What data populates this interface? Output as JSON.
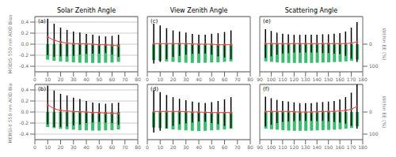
{
  "chart_data": [
    {
      "type": "line",
      "title": "Solar Zenith Angle",
      "ylabel": "MODIS 550 nm AOD Bias",
      "annotations": [
        "(a)"
      ],
      "x": [
        10,
        15,
        20,
        25,
        30,
        35,
        40,
        45,
        50,
        55,
        60,
        65
      ],
      "xlim": [
        0,
        80
      ],
      "xticks": [
        0,
        10,
        20,
        30,
        40,
        50,
        60,
        70,
        80
      ],
      "ylim": [
        -0.5,
        0.5
      ],
      "yticks": [
        -0.4,
        -0.2,
        {
          "value": 0,
          "label": "0.0"
        },
        0.2,
        0.4
      ],
      "y2lim": [
        125,
        -125
      ],
      "grid": true,
      "series": [
        {
          "type": "bar",
          "axis": "y2",
          "color": "#3dbb6e",
          "values": [
            70,
            75,
            78,
            80,
            82,
            84,
            84,
            85,
            85,
            84,
            83,
            80
          ]
        },
        {
          "type": "line",
          "color": "#d94040",
          "marker": "circle",
          "values": [
            0.13,
            0.07,
            0.04,
            0.02,
            0.01,
            0.01,
            0.005,
            0.0,
            -0.01,
            -0.01,
            -0.02,
            -0.03
          ],
          "error": [
            0.33,
            0.3,
            0.26,
            0.24,
            0.22,
            0.2,
            0.18,
            0.17,
            0.16,
            0.15,
            0.17,
            0.2
          ]
        }
      ]
    },
    {
      "type": "line",
      "title": "View Zenith Angle",
      "annotations": [
        "(c)"
      ],
      "tick_labels": "x",
      "x": [
        5,
        10,
        15,
        20,
        25,
        30,
        35,
        40,
        45,
        50,
        55,
        60,
        65
      ],
      "xlim": [
        0,
        80
      ],
      "xticks": [
        0,
        10,
        20,
        30,
        40,
        50,
        60,
        70,
        80
      ],
      "ylim": [
        -0.5,
        0.5
      ],
      "yticks": [
        -0.4,
        -0.2,
        {
          "value": 0,
          "label": "0.0"
        },
        0.2,
        0.4
      ],
      "y2lim": [
        125,
        -125
      ],
      "grid": true,
      "series": [
        {
          "type": "bar",
          "axis": "y2",
          "color": "#3dbb6e",
          "values": [
            72,
            75,
            78,
            80,
            82,
            84,
            85,
            85,
            84,
            83,
            82,
            80,
            78
          ]
        },
        {
          "type": "line",
          "color": "#d94040",
          "marker": "circle",
          "values": [
            0.01,
            0.01,
            0.01,
            0.01,
            0.01,
            0.01,
            0.005,
            0.0,
            0.0,
            0.0,
            -0.01,
            -0.01,
            -0.01
          ],
          "error": [
            0.36,
            0.33,
            0.28,
            0.24,
            0.22,
            0.2,
            0.18,
            0.17,
            0.17,
            0.19,
            0.21,
            0.23,
            0.26
          ]
        }
      ]
    },
    {
      "type": "line",
      "title": "Scattering Angle",
      "y2label": "Within EE (%)",
      "annotations": [
        "(e)"
      ],
      "tick_labels": "x",
      "x": [
        95,
        100,
        105,
        110,
        115,
        120,
        125,
        130,
        135,
        140,
        145,
        150,
        155,
        160,
        165,
        170,
        175
      ],
      "xlim": [
        90,
        180
      ],
      "xticks": [
        90,
        100,
        110,
        120,
        130,
        140,
        150,
        160,
        170,
        180
      ],
      "ylim": [
        -0.5,
        0.5
      ],
      "yticks": [
        -0.4,
        -0.2,
        {
          "value": 0,
          "label": "0.0"
        },
        0.2,
        0.4
      ],
      "y2lim": [
        125,
        -125
      ],
      "y2ticks": [
        0,
        100
      ],
      "grid": true,
      "series": [
        {
          "type": "bar",
          "axis": "y2",
          "color": "#3dbb6e",
          "values": [
            78,
            80,
            82,
            84,
            85,
            85,
            85,
            85,
            85,
            84,
            83,
            82,
            81,
            80,
            78,
            75,
            70
          ]
        },
        {
          "type": "line",
          "color": "#d94040",
          "marker": "circle",
          "values": [
            0.01,
            0.01,
            0.01,
            0.01,
            0.01,
            0.01,
            0.01,
            0.01,
            0.01,
            0.01,
            0.01,
            0.01,
            0.01,
            0.01,
            0.01,
            0.02,
            0.04
          ],
          "error": [
            0.26,
            0.23,
            0.2,
            0.18,
            0.17,
            0.16,
            0.16,
            0.16,
            0.16,
            0.16,
            0.17,
            0.17,
            0.18,
            0.19,
            0.22,
            0.28,
            0.36
          ]
        }
      ]
    },
    {
      "type": "line",
      "ylabel": "MERSI-II 550 nm AOD Bias",
      "annotations": [
        "(b)"
      ],
      "x": [
        10,
        15,
        20,
        25,
        30,
        35,
        40,
        45,
        50,
        55,
        60,
        65
      ],
      "xlim": [
        0,
        80
      ],
      "xticks": [
        0,
        10,
        20,
        30,
        40,
        50,
        60,
        70,
        80
      ],
      "ylim": [
        -0.5,
        0.5
      ],
      "yticks": [
        -0.4,
        -0.2,
        {
          "value": 0,
          "label": "0.0"
        },
        0.2,
        0.4
      ],
      "y2lim": [
        125,
        -125
      ],
      "grid": true,
      "series": [
        {
          "type": "bar",
          "axis": "y2",
          "color": "#3dbb6e",
          "values": [
            68,
            73,
            76,
            78,
            80,
            82,
            83,
            84,
            84,
            83,
            82,
            79
          ]
        },
        {
          "type": "line",
          "color": "#d94040",
          "marker": "circle",
          "values": [
            0.13,
            0.06,
            0.03,
            0.02,
            0.01,
            0.005,
            0.0,
            -0.01,
            -0.01,
            -0.02,
            -0.02,
            -0.03
          ],
          "error": [
            0.35,
            0.33,
            0.3,
            0.28,
            0.25,
            0.23,
            0.2,
            0.18,
            0.17,
            0.17,
            0.18,
            0.2
          ]
        }
      ]
    },
    {
      "type": "line",
      "annotations": [
        "(d)"
      ],
      "tick_labels": "x",
      "x": [
        5,
        10,
        15,
        20,
        25,
        30,
        35,
        40,
        45,
        50,
        55,
        60,
        65
      ],
      "xlim": [
        0,
        80
      ],
      "xticks": [
        0,
        10,
        20,
        30,
        40,
        50,
        60,
        70,
        80
      ],
      "ylim": [
        -0.5,
        0.5
      ],
      "yticks": [
        -0.4,
        -0.2,
        {
          "value": 0,
          "label": "0.0"
        },
        0.2,
        0.4
      ],
      "y2lim": [
        125,
        -125
      ],
      "grid": true,
      "series": [
        {
          "type": "bar",
          "axis": "y2",
          "color": "#3dbb6e",
          "values": [
            70,
            73,
            76,
            79,
            81,
            83,
            85,
            86,
            85,
            83,
            81,
            79,
            76
          ]
        },
        {
          "type": "line",
          "color": "#d94040",
          "marker": "circle",
          "values": [
            0.01,
            0.01,
            0.01,
            0.01,
            0.01,
            0.005,
            0.0,
            0.0,
            -0.005,
            -0.01,
            -0.01,
            -0.01,
            -0.01
          ],
          "error": [
            0.38,
            0.35,
            0.3,
            0.26,
            0.23,
            0.21,
            0.19,
            0.17,
            0.17,
            0.19,
            0.21,
            0.24,
            0.28
          ]
        }
      ]
    },
    {
      "type": "line",
      "y2label": "Within EE (%)",
      "annotations": [
        "(f)"
      ],
      "tick_labels": "x",
      "x": [
        95,
        100,
        105,
        110,
        115,
        120,
        125,
        130,
        135,
        140,
        145,
        150,
        155,
        160,
        165,
        170,
        175
      ],
      "xlim": [
        90,
        180
      ],
      "xticks": [
        90,
        100,
        110,
        120,
        130,
        140,
        150,
        160,
        170,
        180
      ],
      "ylim": [
        -0.5,
        0.5
      ],
      "yticks": [
        -0.4,
        -0.2,
        {
          "value": 0,
          "label": "0.0"
        },
        0.2,
        0.4
      ],
      "y2lim": [
        125,
        -125
      ],
      "y2ticks": [
        0,
        100
      ],
      "grid": true,
      "series": [
        {
          "type": "bar",
          "axis": "y2",
          "color": "#3dbb6e",
          "values": [
            75,
            78,
            80,
            82,
            84,
            85,
            85,
            85,
            84,
            83,
            82,
            81,
            80,
            78,
            75,
            72,
            65
          ]
        },
        {
          "type": "line",
          "color": "#d94040",
          "marker": "circle",
          "values": [
            0.01,
            0.01,
            0.01,
            0.01,
            0.01,
            0.005,
            0.0,
            0.0,
            0.0,
            0.005,
            0.01,
            0.01,
            0.01,
            0.02,
            0.03,
            0.05,
            0.1
          ],
          "error": [
            0.27,
            0.24,
            0.21,
            0.19,
            0.18,
            0.17,
            0.16,
            0.16,
            0.16,
            0.17,
            0.17,
            0.18,
            0.19,
            0.21,
            0.24,
            0.3,
            0.4
          ]
        }
      ]
    }
  ]
}
